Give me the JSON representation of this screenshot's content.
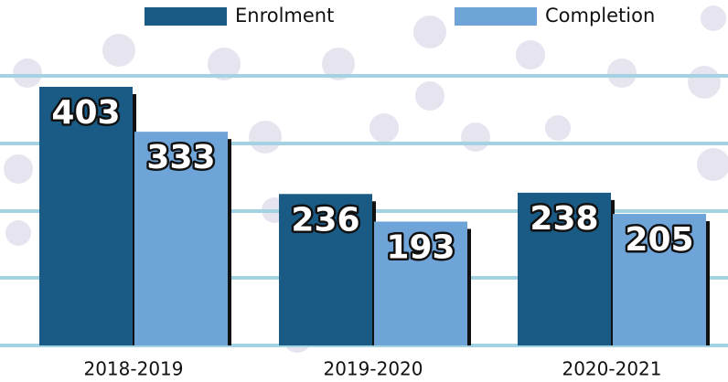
{
  "chart_data": {
    "type": "bar",
    "categories": [
      "2018-2019",
      "2019-2020",
      "2020-2021"
    ],
    "series": [
      {
        "name": "Enrolment",
        "color": "#1a5b86",
        "values": [
          403,
          236,
          238
        ]
      },
      {
        "name": "Completion",
        "color": "#6fa4d9",
        "values": [
          333,
          193,
          205
        ]
      }
    ],
    "ylim": [
      0,
      450
    ]
  }
}
